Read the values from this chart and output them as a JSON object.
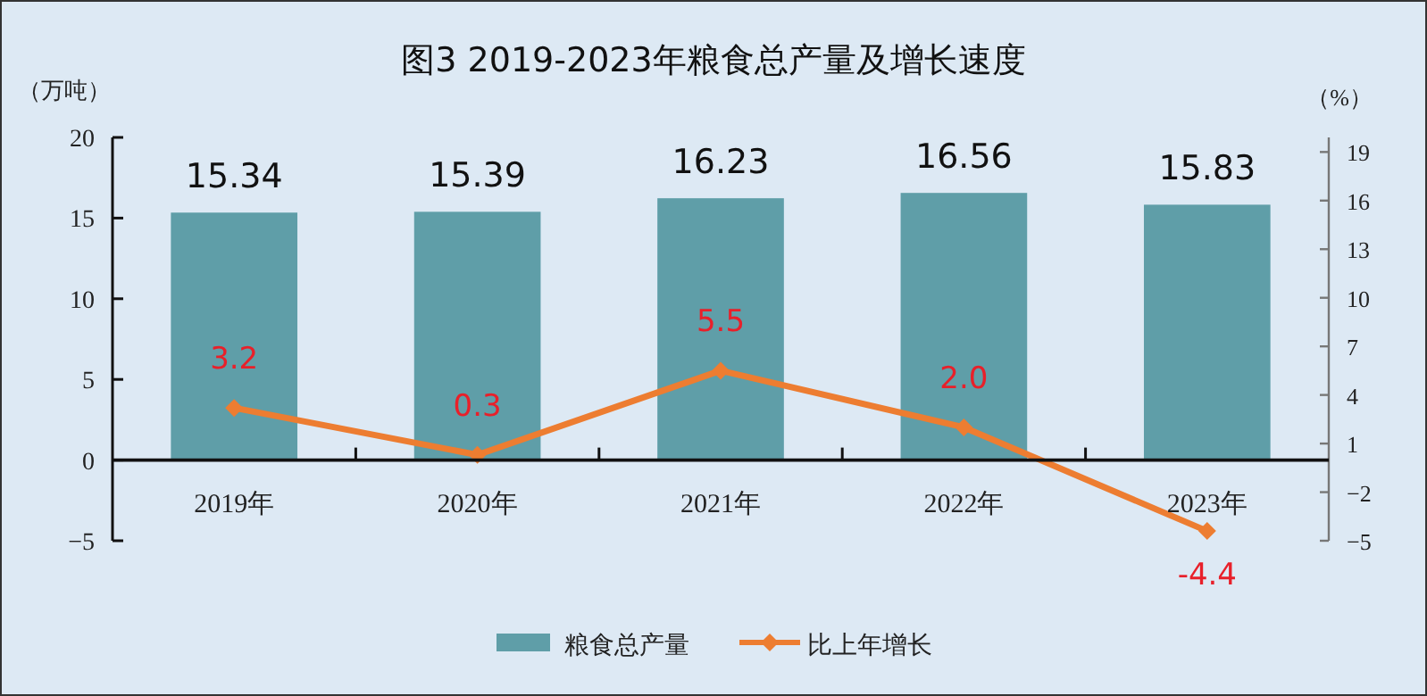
{
  "chart_data": {
    "type": "bar",
    "title": "图3  2019-2023年粮食总产量及增长速度",
    "ylabel": "（万吨）",
    "y2label": "（%）",
    "categories": [
      "2019年",
      "2020年",
      "2021年",
      "2022年",
      "2023年"
    ],
    "series": [
      {
        "name": "粮食总产量",
        "color": "#5f9ea8",
        "values": [
          15.34,
          15.39,
          16.23,
          16.56,
          15.83
        ]
      },
      {
        "name": "比上年增长",
        "type": "line",
        "axis": "y2",
        "color": "#ed7d31",
        "marker": "diamond",
        "values": [
          3.2,
          0.3,
          5.5,
          2.0,
          -4.4
        ],
        "value_labels": [
          "3.2",
          "0.3",
          "5.5",
          "2.0",
          "-4.4"
        ]
      }
    ],
    "ylim": [
      -5,
      20
    ],
    "yticks": [
      -5,
      0,
      5,
      10,
      15,
      20
    ],
    "y2lim": [
      -5,
      19.9
    ],
    "y2ticks": [
      -5,
      -2,
      1,
      4,
      7,
      10,
      13,
      16,
      19
    ],
    "data_labels": true,
    "legend": "bottom"
  }
}
